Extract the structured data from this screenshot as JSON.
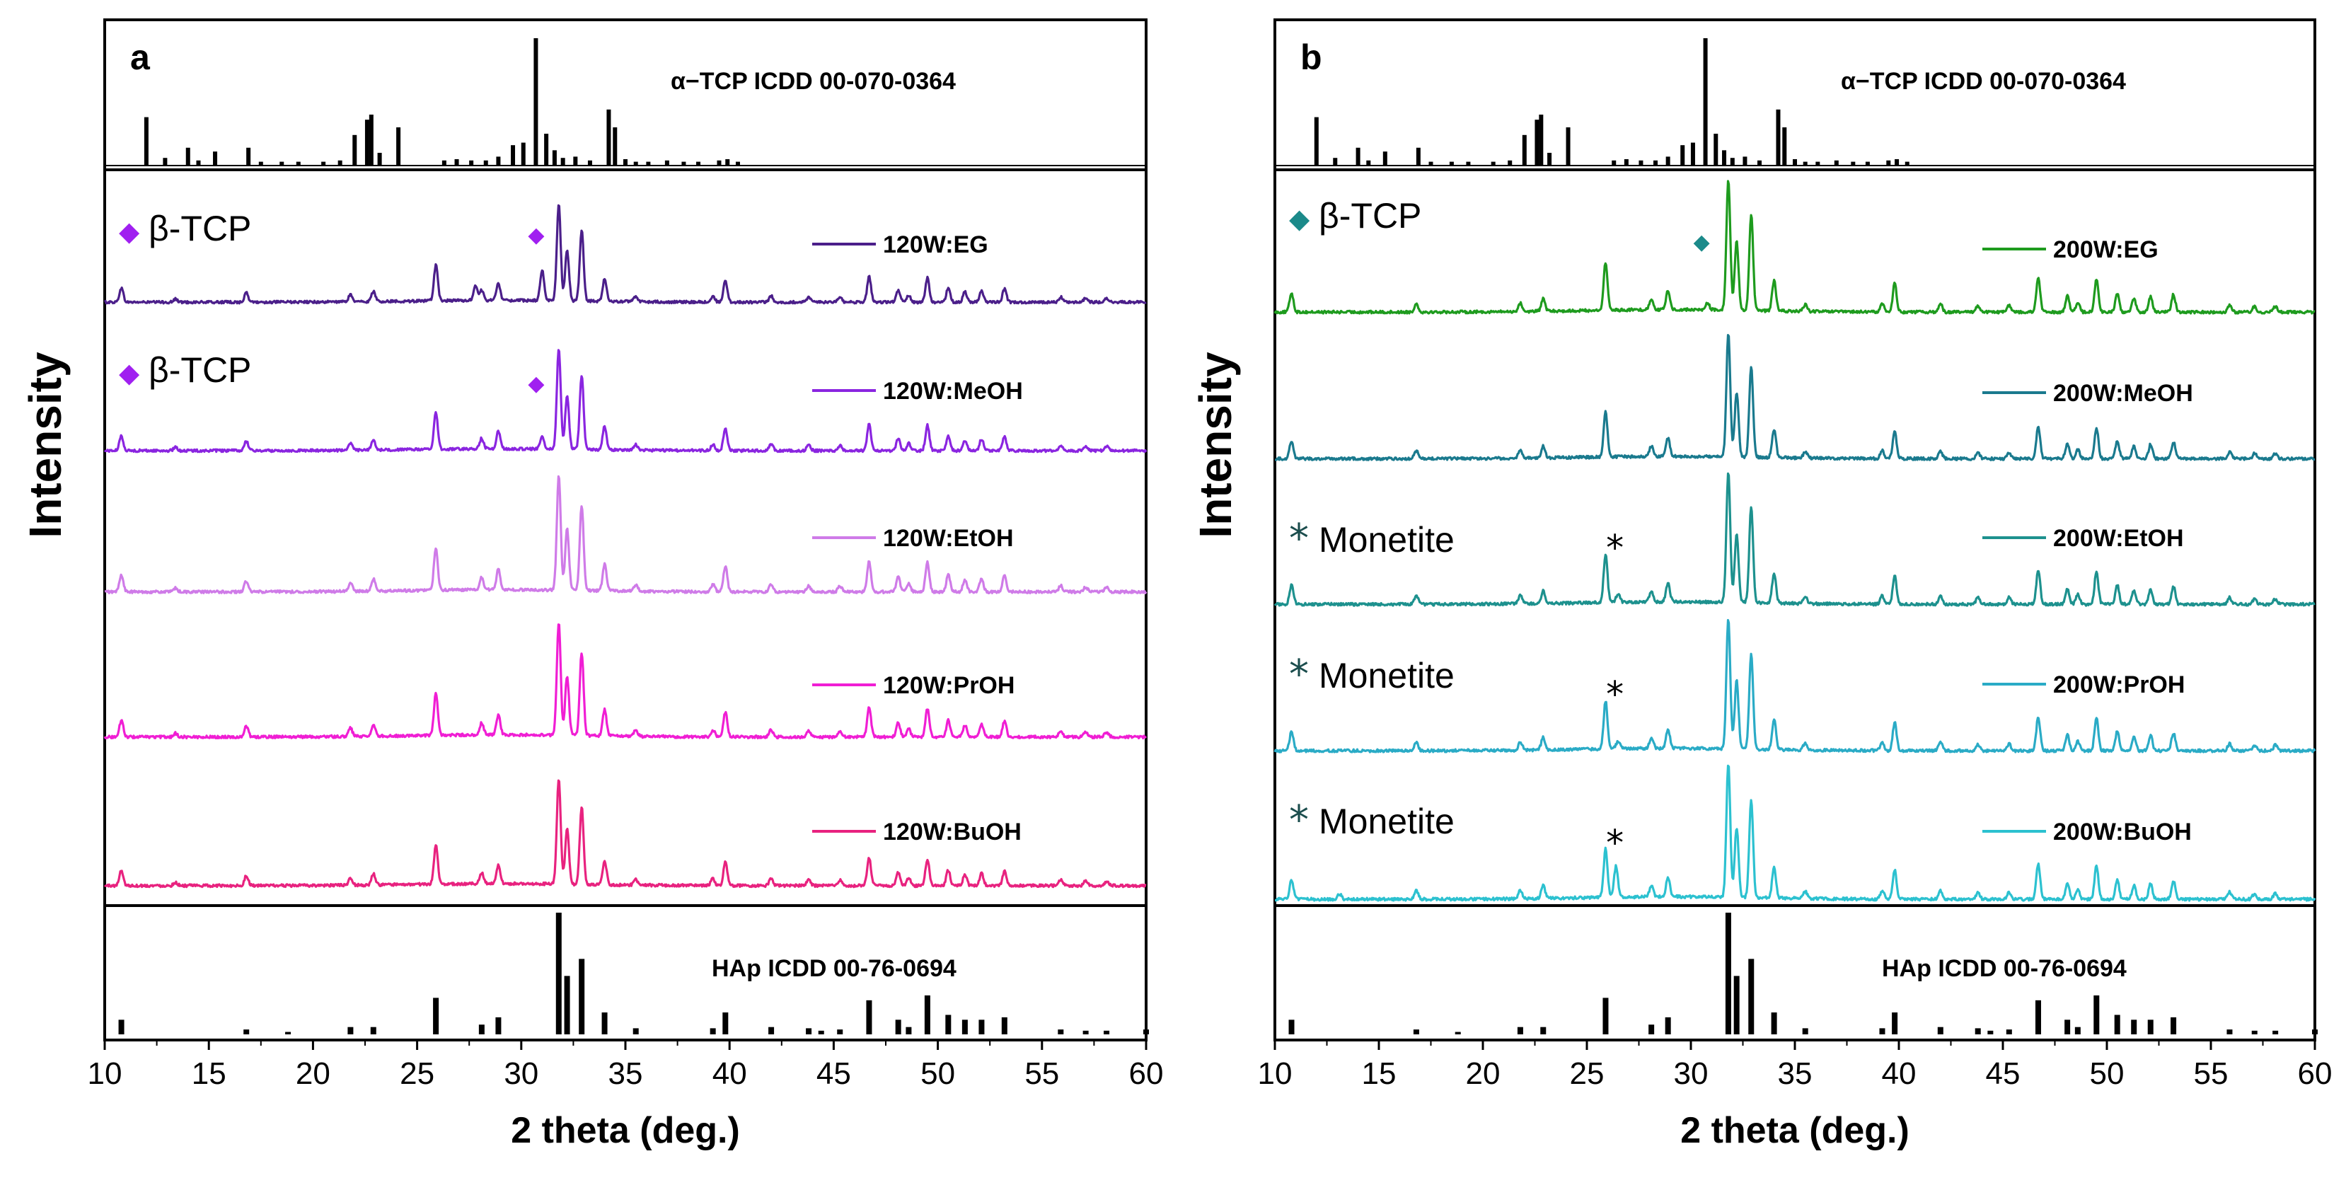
{
  "chart_data": [
    {
      "panel_id": "panel-a",
      "type": "line",
      "panel_label": "a",
      "xlabel": "2 theta (deg.)",
      "ylabel": "Intensity",
      "xlim": [
        10,
        60
      ],
      "xticks": [
        "10",
        "15",
        "20",
        "25",
        "30",
        "35",
        "40",
        "45",
        "50",
        "55",
        "60"
      ],
      "top_reference": {
        "label": "α−TCP ICDD 00-070-0364",
        "peaks": [
          [
            12.0,
            38
          ],
          [
            12.9,
            6
          ],
          [
            14.0,
            14
          ],
          [
            14.5,
            4
          ],
          [
            15.3,
            11
          ],
          [
            16.9,
            14
          ],
          [
            17.5,
            3
          ],
          [
            18.5,
            3
          ],
          [
            19.3,
            3
          ],
          [
            20.5,
            3
          ],
          [
            21.3,
            4
          ],
          [
            22.0,
            24
          ],
          [
            22.6,
            36
          ],
          [
            22.8,
            40
          ],
          [
            23.2,
            10
          ],
          [
            24.1,
            30
          ],
          [
            26.3,
            4
          ],
          [
            26.9,
            5
          ],
          [
            27.6,
            4
          ],
          [
            28.3,
            4
          ],
          [
            28.9,
            7
          ],
          [
            29.6,
            16
          ],
          [
            30.1,
            18
          ],
          [
            30.7,
            100
          ],
          [
            31.2,
            25
          ],
          [
            31.6,
            12
          ],
          [
            32.0,
            6
          ],
          [
            32.6,
            7
          ],
          [
            33.3,
            4
          ],
          [
            34.2,
            44
          ],
          [
            34.5,
            30
          ],
          [
            35.0,
            5
          ],
          [
            35.5,
            3
          ],
          [
            36.1,
            3
          ],
          [
            37.0,
            4
          ],
          [
            37.8,
            3
          ],
          [
            38.5,
            3
          ],
          [
            39.5,
            4
          ],
          [
            39.9,
            5
          ],
          [
            40.4,
            3
          ]
        ]
      },
      "bottom_reference": {
        "label": "HAp ICDD 00-76-0694",
        "peaks": [
          [
            10.8,
            12
          ],
          [
            16.8,
            4
          ],
          [
            18.8,
            2
          ],
          [
            21.8,
            6
          ],
          [
            22.9,
            6
          ],
          [
            25.9,
            30
          ],
          [
            28.1,
            8
          ],
          [
            28.9,
            14
          ],
          [
            31.8,
            100
          ],
          [
            32.2,
            48
          ],
          [
            32.9,
            62
          ],
          [
            34.0,
            18
          ],
          [
            35.5,
            5
          ],
          [
            39.2,
            5
          ],
          [
            39.8,
            18
          ],
          [
            42.0,
            6
          ],
          [
            43.8,
            5
          ],
          [
            44.4,
            3
          ],
          [
            45.3,
            4
          ],
          [
            46.7,
            28
          ],
          [
            48.1,
            12
          ],
          [
            48.6,
            6
          ],
          [
            49.5,
            32
          ],
          [
            50.5,
            16
          ],
          [
            51.3,
            12
          ],
          [
            52.1,
            12
          ],
          [
            53.2,
            14
          ],
          [
            55.9,
            4
          ],
          [
            57.1,
            3
          ],
          [
            58.1,
            3
          ],
          [
            60.0,
            4
          ]
        ]
      },
      "common_peaks": [
        [
          10.8,
          0.14
        ],
        [
          13.4,
          0.03
        ],
        [
          16.8,
          0.09
        ],
        [
          21.8,
          0.07
        ],
        [
          22.9,
          0.1
        ],
        [
          25.9,
          0.35
        ],
        [
          28.1,
          0.1
        ],
        [
          28.9,
          0.17
        ],
        [
          31.8,
          0.95
        ],
        [
          32.2,
          0.5
        ],
        [
          32.9,
          0.7
        ],
        [
          34.0,
          0.22
        ],
        [
          35.5,
          0.05
        ],
        [
          39.2,
          0.06
        ],
        [
          39.8,
          0.21
        ],
        [
          42.0,
          0.06
        ],
        [
          43.8,
          0.05
        ],
        [
          45.3,
          0.05
        ],
        [
          46.7,
          0.25
        ],
        [
          48.1,
          0.12
        ],
        [
          48.6,
          0.07
        ],
        [
          49.5,
          0.24
        ],
        [
          50.5,
          0.14
        ],
        [
          51.3,
          0.1
        ],
        [
          52.1,
          0.11
        ],
        [
          53.2,
          0.13
        ],
        [
          55.9,
          0.05
        ],
        [
          57.1,
          0.04
        ],
        [
          58.1,
          0.04
        ]
      ],
      "series": [
        {
          "name": "120W:EG",
          "color": "#4b1f8a",
          "amplitude": 0.72,
          "extra_peaks": [
            [
              27.8,
              0.15
            ],
            [
              31.0,
              0.3
            ]
          ]
        },
        {
          "name": "120W:MeOH",
          "color": "#8a25e0",
          "amplitude": 0.75,
          "extra_peaks": [
            [
              31.0,
              0.12
            ]
          ]
        },
        {
          "name": "120W:EtOH",
          "color": "#cf7be8",
          "amplitude": 0.82,
          "extra_peaks": []
        },
        {
          "name": "120W:PrOH",
          "color": "#f01ed4",
          "amplitude": 0.8,
          "extra_peaks": []
        },
        {
          "name": "120W:BuOH",
          "color": "#e8227f",
          "amplitude": 0.75,
          "extra_peaks": []
        }
      ],
      "phase_markers": [
        {
          "series": "120W:EG",
          "symbol": "◆",
          "text": "β-TCP",
          "color": "#a020f0",
          "peak_x": 30.8
        },
        {
          "series": "120W:MeOH",
          "symbol": "◆",
          "text": "β-TCP",
          "color": "#a020f0",
          "peak_x": 30.8
        }
      ]
    },
    {
      "panel_id": "panel-b",
      "type": "line",
      "panel_label": "b",
      "xlabel": "2 theta (deg.)",
      "ylabel": "Intensity",
      "xlim": [
        10,
        60
      ],
      "xticks": [
        "10",
        "15",
        "20",
        "25",
        "30",
        "35",
        "40",
        "45",
        "50",
        "55",
        "60"
      ],
      "top_reference": {
        "label": "α−TCP ICDD 00-070-0364",
        "peaks": [
          [
            12.0,
            38
          ],
          [
            12.9,
            6
          ],
          [
            14.0,
            14
          ],
          [
            14.5,
            4
          ],
          [
            15.3,
            11
          ],
          [
            16.9,
            14
          ],
          [
            17.5,
            3
          ],
          [
            18.5,
            3
          ],
          [
            19.3,
            3
          ],
          [
            20.5,
            3
          ],
          [
            21.3,
            4
          ],
          [
            22.0,
            24
          ],
          [
            22.6,
            36
          ],
          [
            22.8,
            40
          ],
          [
            23.2,
            10
          ],
          [
            24.1,
            30
          ],
          [
            26.3,
            4
          ],
          [
            26.9,
            5
          ],
          [
            27.6,
            4
          ],
          [
            28.3,
            4
          ],
          [
            28.9,
            7
          ],
          [
            29.6,
            16
          ],
          [
            30.1,
            18
          ],
          [
            30.7,
            100
          ],
          [
            31.2,
            25
          ],
          [
            31.6,
            12
          ],
          [
            32.0,
            6
          ],
          [
            32.6,
            7
          ],
          [
            33.3,
            4
          ],
          [
            34.2,
            44
          ],
          [
            34.5,
            30
          ],
          [
            35.0,
            5
          ],
          [
            35.5,
            3
          ],
          [
            36.1,
            3
          ],
          [
            37.0,
            4
          ],
          [
            37.8,
            3
          ],
          [
            38.5,
            3
          ],
          [
            39.5,
            4
          ],
          [
            39.9,
            5
          ],
          [
            40.4,
            3
          ]
        ]
      },
      "bottom_reference": {
        "label": "HAp ICDD 00-76-0694",
        "peaks": [
          [
            10.8,
            12
          ],
          [
            16.8,
            4
          ],
          [
            18.8,
            2
          ],
          [
            21.8,
            6
          ],
          [
            22.9,
            6
          ],
          [
            25.9,
            30
          ],
          [
            28.1,
            8
          ],
          [
            28.9,
            14
          ],
          [
            31.8,
            100
          ],
          [
            32.2,
            48
          ],
          [
            32.9,
            62
          ],
          [
            34.0,
            18
          ],
          [
            35.5,
            5
          ],
          [
            39.2,
            5
          ],
          [
            39.8,
            18
          ],
          [
            42.0,
            6
          ],
          [
            43.8,
            5
          ],
          [
            44.4,
            3
          ],
          [
            45.3,
            4
          ],
          [
            46.7,
            28
          ],
          [
            48.1,
            12
          ],
          [
            48.6,
            6
          ],
          [
            49.5,
            32
          ],
          [
            50.5,
            16
          ],
          [
            51.3,
            12
          ],
          [
            52.1,
            12
          ],
          [
            53.2,
            14
          ],
          [
            55.9,
            4
          ],
          [
            57.1,
            3
          ],
          [
            58.1,
            3
          ],
          [
            60.0,
            4
          ]
        ]
      },
      "common_peaks": [
        [
          10.8,
          0.14
        ],
        [
          16.8,
          0.06
        ],
        [
          21.8,
          0.06
        ],
        [
          22.9,
          0.09
        ],
        [
          25.9,
          0.35
        ],
        [
          28.1,
          0.08
        ],
        [
          28.9,
          0.14
        ],
        [
          31.8,
          0.95
        ],
        [
          32.2,
          0.5
        ],
        [
          32.9,
          0.7
        ],
        [
          34.0,
          0.22
        ],
        [
          35.5,
          0.05
        ],
        [
          39.2,
          0.06
        ],
        [
          39.8,
          0.21
        ],
        [
          42.0,
          0.06
        ],
        [
          43.8,
          0.05
        ],
        [
          45.3,
          0.05
        ],
        [
          46.7,
          0.25
        ],
        [
          48.1,
          0.12
        ],
        [
          48.6,
          0.07
        ],
        [
          49.5,
          0.24
        ],
        [
          50.5,
          0.14
        ],
        [
          51.3,
          0.1
        ],
        [
          52.1,
          0.11
        ],
        [
          53.2,
          0.13
        ],
        [
          55.9,
          0.05
        ],
        [
          57.1,
          0.04
        ],
        [
          58.1,
          0.04
        ]
      ],
      "series": [
        {
          "name": "200W:EG",
          "color": "#1e9b1e",
          "amplitude": 0.9,
          "extra_peaks": [
            [
              30.8,
              0.05
            ]
          ]
        },
        {
          "name": "200W:MeOH",
          "color": "#1a7a8e",
          "amplitude": 0.85,
          "extra_peaks": []
        },
        {
          "name": "200W:EtOH",
          "color": "#1d918e",
          "amplitude": 0.88,
          "extra_peaks": [
            [
              26.5,
              0.06
            ]
          ]
        },
        {
          "name": "200W:PrOH",
          "color": "#2aabc6",
          "amplitude": 0.88,
          "extra_peaks": [
            [
              26.5,
              0.05
            ]
          ]
        },
        {
          "name": "200W:BuOH",
          "color": "#2cc1d0",
          "amplitude": 0.9,
          "extra_peaks": [
            [
              26.4,
              0.22
            ],
            [
              13.1,
              0.04
            ]
          ]
        }
      ],
      "phase_markers": [
        {
          "series": "200W:EG",
          "symbol": "◆",
          "text": "β-TCP",
          "color": "#1b8a8a",
          "peak_x": 30.6
        },
        {
          "series": "200W:EtOH",
          "symbol": "*",
          "text": "Monetite",
          "color": "#1b4d4d",
          "peak_x": 26.4
        },
        {
          "series": "200W:PrOH",
          "symbol": "*",
          "text": "Monetite",
          "color": "#1b4d4d",
          "peak_x": 26.4
        },
        {
          "series": "200W:BuOH",
          "symbol": "*",
          "text": "Monetite",
          "color": "#1b4d4d",
          "peak_x": 26.4
        }
      ]
    }
  ]
}
